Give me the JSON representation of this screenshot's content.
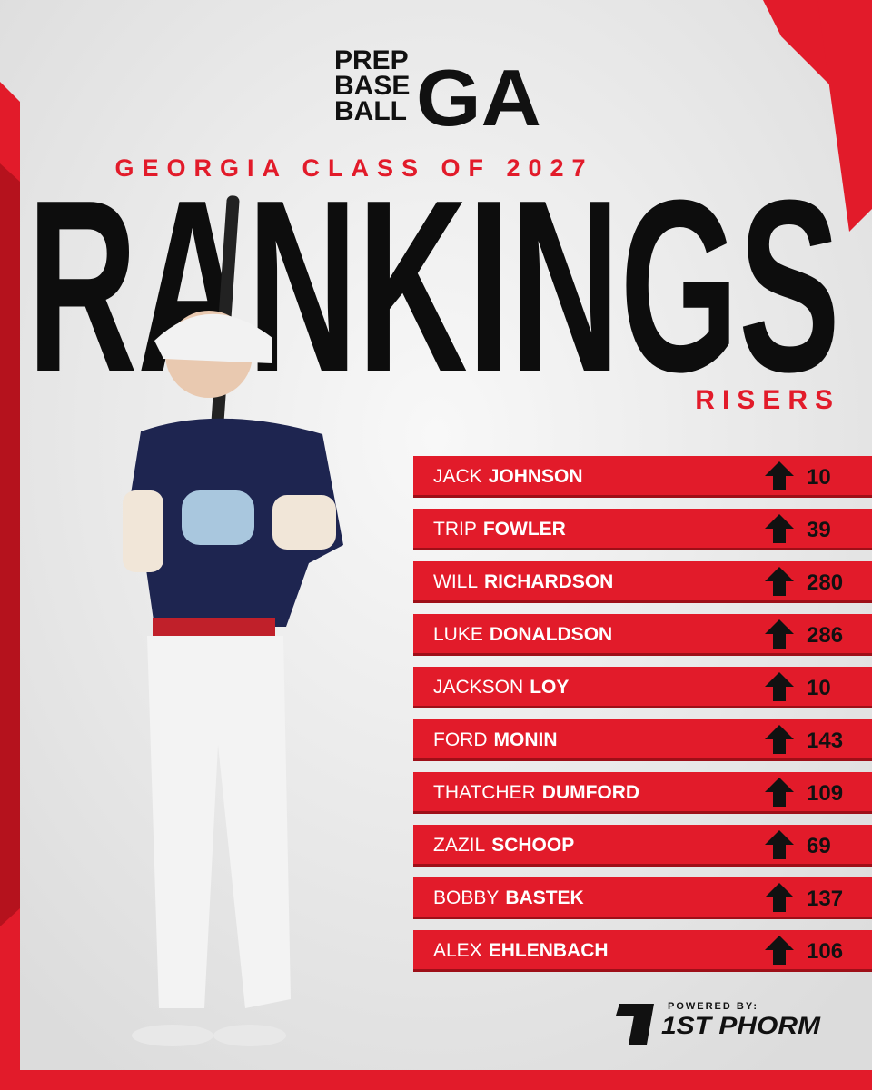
{
  "logo": {
    "lines": [
      "PREP",
      "BASE",
      "BALL"
    ],
    "region": "GA"
  },
  "subtitle": "GEORGIA CLASS OF 2027",
  "title": "RANKINGS",
  "section": "RISERS",
  "rows": [
    {
      "first": "JACK",
      "last": "JOHNSON",
      "rise": 10
    },
    {
      "first": "TRIP",
      "last": "FOWLER",
      "rise": 39
    },
    {
      "first": "WILL",
      "last": "RICHARDSON",
      "rise": 280
    },
    {
      "first": "LUKE",
      "last": "DONALDSON",
      "rise": 286
    },
    {
      "first": "JACKSON",
      "last": "LOY",
      "rise": 10
    },
    {
      "first": "FORD",
      "last": "MONIN",
      "rise": 143
    },
    {
      "first": "THATCHER",
      "last": "DUMFORD",
      "rise": 109
    },
    {
      "first": "ZAZIL",
      "last": "SCHOOP",
      "rise": 69
    },
    {
      "first": "BOBBY",
      "last": "BASTEK",
      "rise": 137
    },
    {
      "first": "ALEX",
      "last": "EHLENBACH",
      "rise": 106
    }
  ],
  "sponsor": {
    "tagline": "POWERED BY:",
    "name": "1ST PHORM"
  }
}
